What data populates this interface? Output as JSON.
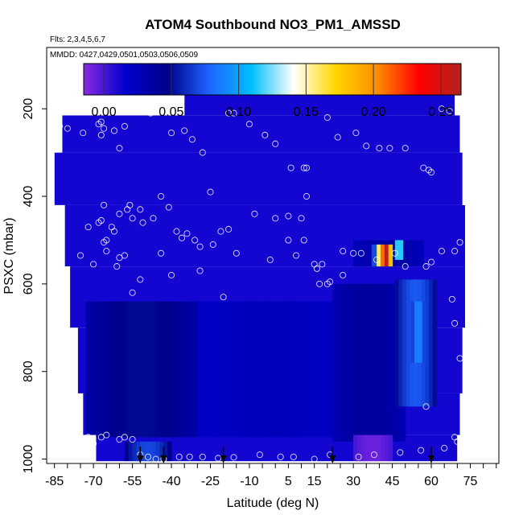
{
  "chart_data": {
    "type": "heatmap",
    "title": "ATOM4 Southbound NO3_PM1_AMSSD",
    "flights_note": "Flts: 2,3,4,5,6,7",
    "dates_note": "MMDD: 0427,0429,0501,0503,0506,0509",
    "xlabel": "Latitude (deg N)",
    "ylabel": "PSXC (mbar)",
    "xlim": [
      -88,
      86
    ],
    "ylim": [
      1010,
      60
    ],
    "x_ticks": [
      -85,
      -70,
      -55,
      -40,
      -25,
      -10,
      5,
      15,
      30,
      45,
      60,
      75
    ],
    "x_tick_labels": [
      "-85",
      "-70",
      "-55",
      "-40",
      "-25",
      "-10",
      "5",
      "15",
      "30",
      "45",
      "60",
      "75"
    ],
    "y_ticks": [
      200,
      400,
      600,
      800,
      1000
    ],
    "y_tick_labels": [
      "200",
      "400",
      "600",
      "800",
      "1000"
    ],
    "colorbar": {
      "min": -0.015,
      "max": 0.265,
      "ticks": [
        0.0,
        0.05,
        0.1,
        0.15,
        0.2,
        0.25
      ],
      "tick_labels": [
        "0.00",
        "0.05",
        "0.10",
        "0.15",
        "0.20",
        "0.25"
      ],
      "stops": [
        "#8a2be2",
        "#0000cd",
        "#00008b",
        "#1e64ff",
        "#00bfff",
        "#ffffff",
        "#ffd700",
        "#ff8c00",
        "#ff0000",
        "#b22222"
      ]
    },
    "background_value": 0.012,
    "coverage": [
      {
        "p_top": 155,
        "p_bot": 215,
        "x_left": -35,
        "x_right": 69
      },
      {
        "p_top": 215,
        "p_bot": 300,
        "x_left": -82,
        "x_right": 71
      },
      {
        "p_top": 300,
        "p_bot": 420,
        "x_left": -85,
        "x_right": 72
      },
      {
        "p_top": 420,
        "p_bot": 560,
        "x_left": -81,
        "x_right": 73
      },
      {
        "p_top": 560,
        "p_bot": 700,
        "x_left": -79,
        "x_right": 73
      },
      {
        "p_top": 700,
        "p_bot": 850,
        "x_left": -76,
        "x_right": 72
      },
      {
        "p_top": 850,
        "p_bot": 945,
        "x_left": -74,
        "x_right": 71
      },
      {
        "p_top": 945,
        "p_bot": 1005,
        "x_left": -69,
        "x_right": 70
      }
    ],
    "regions": [
      {
        "lat0": -73,
        "lat1": -30,
        "p0": 640,
        "p1": 950,
        "value": 0.05
      },
      {
        "lat0": -30,
        "lat1": 25,
        "p0": 640,
        "p1": 950,
        "value": 0.025
      },
      {
        "lat0": 22,
        "lat1": 50,
        "p0": 600,
        "p1": 960,
        "value": 0.04
      },
      {
        "lat0": 46,
        "lat1": 62,
        "p0": 590,
        "p1": 880,
        "value": 0.075
      },
      {
        "lat0": 52,
        "lat1": 58,
        "p0": 640,
        "p1": 780,
        "value": 0.09
      },
      {
        "lat0": 30,
        "lat1": 45,
        "p0": 945,
        "p1": 1005,
        "value": -0.008
      },
      {
        "lat0": -58,
        "lat1": -40,
        "p0": 960,
        "p1": 1005,
        "value": 0.07
      },
      {
        "lat0": 30,
        "lat1": 57,
        "p0": 500,
        "p1": 560,
        "value": 0.035
      },
      {
        "lat0": 46,
        "lat1": 49,
        "p0": 500,
        "p1": 545,
        "value": 0.13
      },
      {
        "lat0": 37,
        "lat1": 39,
        "p0": 510,
        "p1": 560,
        "value": 0.07
      },
      {
        "lat0": 39,
        "lat1": 40.5,
        "p0": 510,
        "p1": 560,
        "value": 0.16
      },
      {
        "lat0": 40.5,
        "lat1": 42,
        "p0": 510,
        "p1": 560,
        "value": 0.21
      },
      {
        "lat0": 42,
        "lat1": 43.5,
        "p0": 510,
        "p1": 560,
        "value": 0.26
      },
      {
        "lat0": 43.5,
        "lat1": 45,
        "p0": 510,
        "p1": 560,
        "value": 0.18
      }
    ],
    "sample_points": [
      [
        -83,
        240
      ],
      [
        -80,
        245
      ],
      [
        -74,
        255
      ],
      [
        -68,
        235
      ],
      [
        -67,
        230
      ],
      [
        -66,
        245
      ],
      [
        -67,
        260
      ],
      [
        -62,
        250
      ],
      [
        -60,
        290
      ],
      [
        -58,
        240
      ],
      [
        -55,
        200
      ],
      [
        -48,
        210
      ],
      [
        -47,
        205
      ],
      [
        -40,
        255
      ],
      [
        -35,
        250
      ],
      [
        -32,
        270
      ],
      [
        -28,
        300
      ],
      [
        -25,
        390
      ],
      [
        -18,
        210
      ],
      [
        -16,
        210
      ],
      [
        -10,
        235
      ],
      [
        -4,
        260
      ],
      [
        0,
        280
      ],
      [
        6,
        335
      ],
      [
        11,
        335
      ],
      [
        12,
        335
      ],
      [
        12,
        400
      ],
      [
        20,
        220
      ],
      [
        24,
        265
      ],
      [
        31,
        255
      ],
      [
        35,
        285
      ],
      [
        40,
        290
      ],
      [
        44,
        290
      ],
      [
        50,
        290
      ],
      [
        57,
        335
      ],
      [
        59,
        340
      ],
      [
        60,
        345
      ],
      [
        64,
        200
      ],
      [
        67,
        205
      ],
      [
        -72,
        470
      ],
      [
        -68,
        460
      ],
      [
        -67,
        455
      ],
      [
        -66,
        420
      ],
      [
        -65,
        500
      ],
      [
        -63,
        470
      ],
      [
        -62,
        480
      ],
      [
        -60,
        440
      ],
      [
        -57,
        430
      ],
      [
        -56,
        420
      ],
      [
        -55,
        450
      ],
      [
        -52,
        430
      ],
      [
        -51,
        460
      ],
      [
        -47,
        450
      ],
      [
        -44,
        530
      ],
      [
        -44,
        400
      ],
      [
        -41,
        425
      ],
      [
        -38,
        480
      ],
      [
        -36,
        495
      ],
      [
        -34,
        485
      ],
      [
        -31,
        500
      ],
      [
        -29,
        515
      ],
      [
        -24,
        510
      ],
      [
        -21,
        480
      ],
      [
        -18,
        475
      ],
      [
        -15,
        530
      ],
      [
        -8,
        440
      ],
      [
        -2,
        545
      ],
      [
        5,
        500
      ],
      [
        8,
        535
      ],
      [
        11,
        500
      ],
      [
        16,
        565
      ],
      [
        18,
        555
      ],
      [
        26,
        525
      ],
      [
        30,
        530
      ],
      [
        33,
        530
      ],
      [
        39,
        545
      ],
      [
        46,
        530
      ],
      [
        50,
        560
      ],
      [
        58,
        560
      ],
      [
        64,
        525
      ],
      [
        69,
        525
      ],
      [
        71,
        505
      ],
      [
        -75,
        535
      ],
      [
        -70,
        555
      ],
      [
        -66,
        505
      ],
      [
        -65,
        525
      ],
      [
        -61,
        560
      ],
      [
        -60,
        540
      ],
      [
        -58,
        535
      ],
      [
        -55,
        620
      ],
      [
        -52,
        590
      ],
      [
        -40,
        580
      ],
      [
        -29,
        570
      ],
      [
        -20,
        630
      ],
      [
        0,
        450
      ],
      [
        5,
        445
      ],
      [
        10,
        450
      ],
      [
        15,
        555
      ],
      [
        17,
        600
      ],
      [
        20,
        600
      ],
      [
        21,
        595
      ],
      [
        26,
        580
      ],
      [
        60,
        550
      ],
      [
        68,
        635
      ],
      [
        69,
        690
      ],
      [
        71,
        770
      ],
      [
        58,
        880
      ],
      [
        -72,
        950
      ],
      [
        -70,
        965
      ],
      [
        -67,
        950
      ],
      [
        -65,
        945
      ],
      [
        -60,
        955
      ],
      [
        -58,
        950
      ],
      [
        -55,
        955
      ],
      [
        -52,
        990
      ],
      [
        -49,
        995
      ],
      [
        -46,
        1000
      ],
      [
        -43,
        1000
      ],
      [
        -37,
        995
      ],
      [
        -33,
        995
      ],
      [
        -28,
        995
      ],
      [
        -22,
        998
      ],
      [
        -16,
        996
      ],
      [
        -6,
        990
      ],
      [
        2,
        995
      ],
      [
        7,
        995
      ],
      [
        15,
        1000
      ],
      [
        21,
        990
      ],
      [
        32,
        995
      ],
      [
        38,
        990
      ],
      [
        48,
        985
      ],
      [
        56,
        980
      ],
      [
        65,
        975
      ],
      [
        69,
        950
      ],
      [
        70,
        960
      ]
    ],
    "arrows_lat": [
      -52,
      -43,
      -20,
      22,
      60
    ]
  }
}
